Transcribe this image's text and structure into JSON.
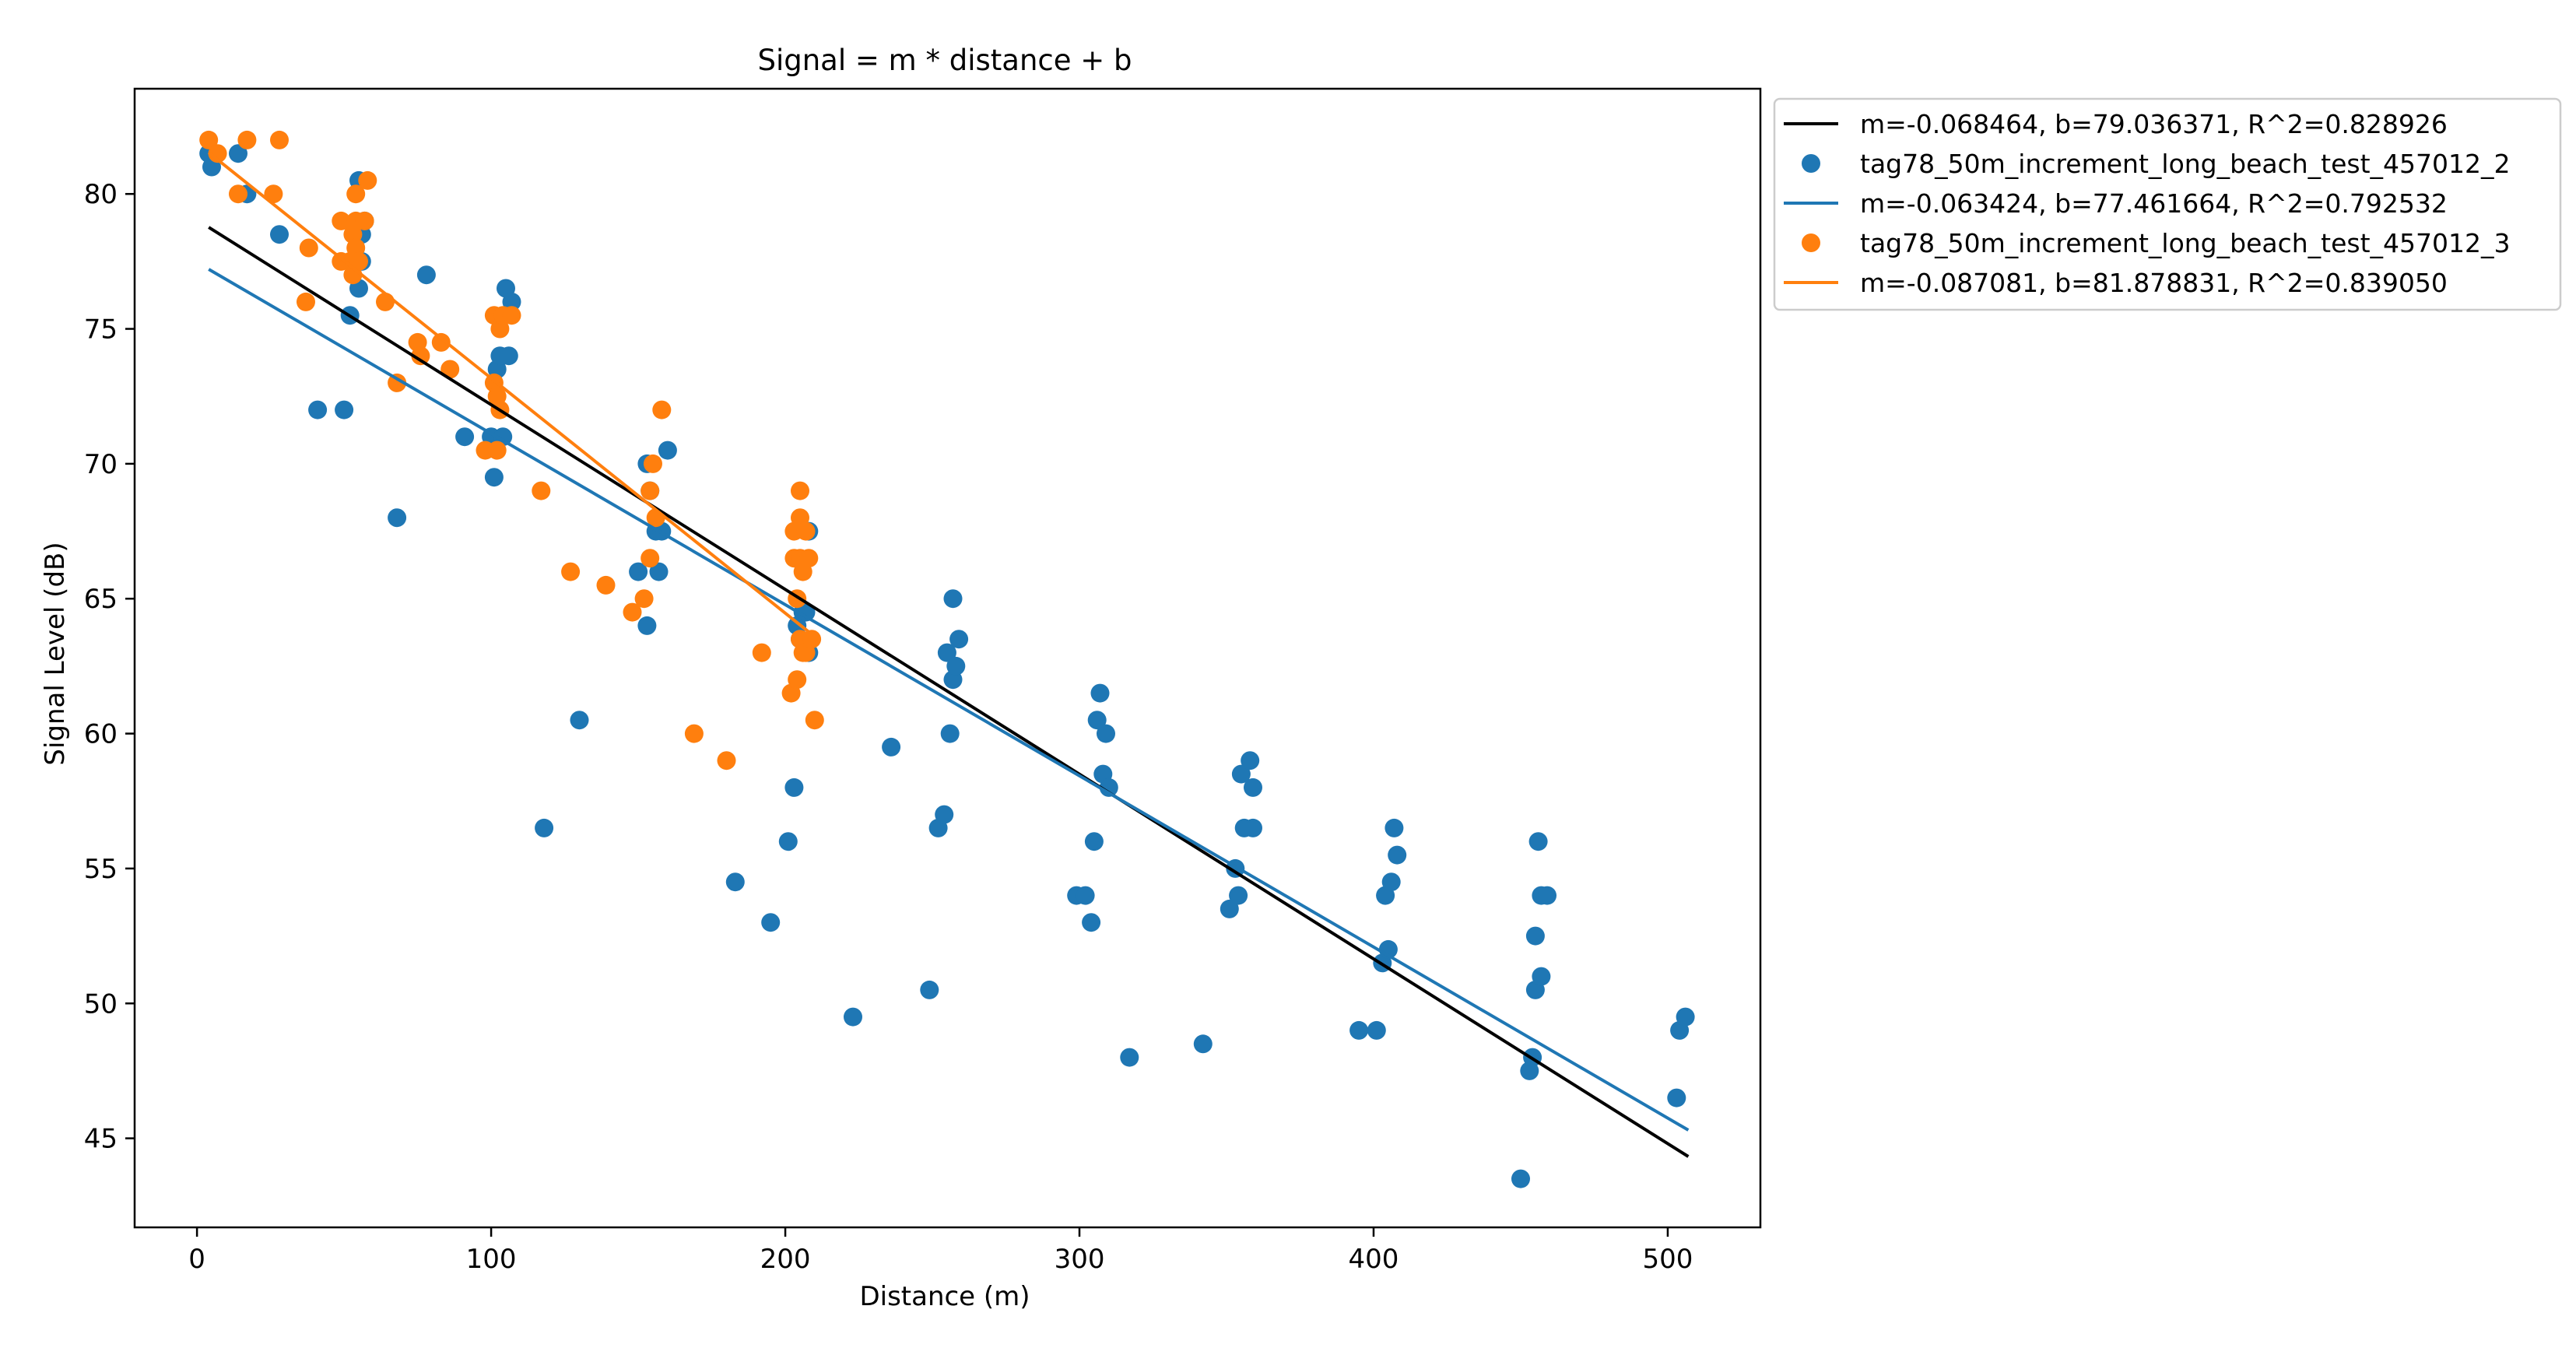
{
  "chart_data": {
    "type": "scatter",
    "title": "Signal = m * distance + b",
    "xlabel": "Distance (m)",
    "ylabel": "Signal Level (dB)",
    "xlim": [
      -21.2,
      531.5
    ],
    "ylim": [
      41.7,
      83.9
    ],
    "xticks": [
      0,
      100,
      200,
      300,
      400,
      500
    ],
    "yticks": [
      45,
      50,
      55,
      60,
      65,
      70,
      75,
      80
    ],
    "grid": false,
    "legend_position": "outside-upper-right",
    "colors": {
      "combined_fit": "#000000",
      "series_2": "#1f77b4",
      "series_3": "#ff7f0e"
    },
    "fits": [
      {
        "label": "m=-0.068464, b=79.036371, R^2=0.828926",
        "m": -0.068464,
        "b": 79.036371,
        "x_range": [
          4,
          507
        ],
        "color": "#000000"
      },
      {
        "label": "m=-0.063424, b=77.461664, R^2=0.792532",
        "m": -0.063424,
        "b": 77.461664,
        "x_range": [
          4,
          507
        ],
        "color": "#1f77b4"
      },
      {
        "label": "m=-0.087081, b=81.878831, R^2=0.839050",
        "m": -0.087081,
        "b": 81.878831,
        "x_range": [
          4,
          208
        ],
        "color": "#ff7f0e"
      }
    ],
    "series": [
      {
        "name": "tag78_50m_increment_long_beach_test_457012_2",
        "color": "#1f77b4",
        "points": [
          [
            4,
            81.5
          ],
          [
            5,
            81
          ],
          [
            14,
            81.5
          ],
          [
            17,
            80
          ],
          [
            28,
            78.5
          ],
          [
            41,
            72
          ],
          [
            50,
            72
          ],
          [
            52,
            75.5
          ],
          [
            55,
            80.5
          ],
          [
            55,
            76.5
          ],
          [
            56,
            77.5
          ],
          [
            56,
            78.5
          ],
          [
            57,
            79
          ],
          [
            68,
            68
          ],
          [
            78,
            77
          ],
          [
            91,
            71
          ],
          [
            100,
            71
          ],
          [
            101,
            69.5
          ],
          [
            102,
            73.5
          ],
          [
            103,
            74
          ],
          [
            104,
            71
          ],
          [
            105,
            76.5
          ],
          [
            106,
            74
          ],
          [
            107,
            76
          ],
          [
            118,
            56.5
          ],
          [
            130,
            60.5
          ],
          [
            150,
            66
          ],
          [
            153,
            64
          ],
          [
            153,
            70
          ],
          [
            154,
            69
          ],
          [
            156,
            67.5
          ],
          [
            157,
            66
          ],
          [
            158,
            67.5
          ],
          [
            160,
            70.5
          ],
          [
            183,
            54.5
          ],
          [
            195,
            53
          ],
          [
            201,
            56
          ],
          [
            203,
            58
          ],
          [
            204,
            64
          ],
          [
            205,
            63.5
          ],
          [
            206,
            64.5
          ],
          [
            207,
            64.5
          ],
          [
            208,
            63
          ],
          [
            208,
            67.5
          ],
          [
            223,
            49.5
          ],
          [
            236,
            59.5
          ],
          [
            249,
            50.5
          ],
          [
            252,
            56.5
          ],
          [
            254,
            57
          ],
          [
            255,
            63
          ],
          [
            256,
            60
          ],
          [
            257,
            62
          ],
          [
            257,
            65
          ],
          [
            258,
            62.5
          ],
          [
            259,
            63.5
          ],
          [
            299,
            54
          ],
          [
            302,
            54
          ],
          [
            304,
            53
          ],
          [
            305,
            56
          ],
          [
            306,
            60.5
          ],
          [
            307,
            61.5
          ],
          [
            308,
            58.5
          ],
          [
            309,
            60
          ],
          [
            310,
            58
          ],
          [
            317,
            48
          ],
          [
            342,
            48.5
          ],
          [
            351,
            53.5
          ],
          [
            353,
            55
          ],
          [
            354,
            54
          ],
          [
            355,
            58.5
          ],
          [
            356,
            56.5
          ],
          [
            358,
            59
          ],
          [
            359,
            58
          ],
          [
            359,
            56.5
          ],
          [
            395,
            49
          ],
          [
            401,
            49
          ],
          [
            403,
            51.5
          ],
          [
            404,
            54
          ],
          [
            405,
            52
          ],
          [
            406,
            54.5
          ],
          [
            407,
            56.5
          ],
          [
            408,
            55.5
          ],
          [
            450,
            43.5
          ],
          [
            453,
            47.5
          ],
          [
            454,
            48
          ],
          [
            455,
            52.5
          ],
          [
            455,
            50.5
          ],
          [
            456,
            56
          ],
          [
            457,
            54
          ],
          [
            457,
            51
          ],
          [
            459,
            54
          ],
          [
            503,
            46.5
          ],
          [
            504,
            49
          ],
          [
            506,
            49.5
          ]
        ]
      },
      {
        "name": "tag78_50m_increment_long_beach_test_457012_3",
        "color": "#ff7f0e",
        "points": [
          [
            4,
            82
          ],
          [
            7,
            81.5
          ],
          [
            14,
            80
          ],
          [
            17,
            82
          ],
          [
            26,
            80
          ],
          [
            28,
            82
          ],
          [
            37,
            76
          ],
          [
            38,
            78
          ],
          [
            49,
            79
          ],
          [
            49,
            77.5
          ],
          [
            52,
            77.5
          ],
          [
            53,
            77
          ],
          [
            53,
            78.5
          ],
          [
            54,
            78
          ],
          [
            54,
            79
          ],
          [
            54,
            80
          ],
          [
            55,
            77.5
          ],
          [
            57,
            79
          ],
          [
            58,
            80.5
          ],
          [
            64,
            76
          ],
          [
            68,
            73
          ],
          [
            75,
            74.5
          ],
          [
            76,
            74
          ],
          [
            83,
            74.5
          ],
          [
            86,
            73.5
          ],
          [
            98,
            70.5
          ],
          [
            101,
            73
          ],
          [
            101,
            75.5
          ],
          [
            102,
            72.5
          ],
          [
            102,
            70.5
          ],
          [
            103,
            72
          ],
          [
            103,
            75
          ],
          [
            104,
            75.5
          ],
          [
            107,
            75.5
          ],
          [
            117,
            69
          ],
          [
            127,
            66
          ],
          [
            139,
            65.5
          ],
          [
            148,
            64.5
          ],
          [
            152,
            65
          ],
          [
            154,
            69
          ],
          [
            154,
            66.5
          ],
          [
            155,
            70
          ],
          [
            156,
            68
          ],
          [
            158,
            72
          ],
          [
            169,
            60
          ],
          [
            180,
            59
          ],
          [
            192,
            63
          ],
          [
            202,
            61.5
          ],
          [
            203,
            67.5
          ],
          [
            203,
            66.5
          ],
          [
            204,
            65
          ],
          [
            204,
            62
          ],
          [
            205,
            63.5
          ],
          [
            205,
            66.5
          ],
          [
            205,
            69
          ],
          [
            205,
            68
          ],
          [
            206,
            66
          ],
          [
            206,
            63
          ],
          [
            207,
            67.5
          ],
          [
            207,
            63
          ],
          [
            208,
            66.5
          ],
          [
            209,
            63.5
          ],
          [
            210,
            60.5
          ]
        ]
      }
    ]
  }
}
